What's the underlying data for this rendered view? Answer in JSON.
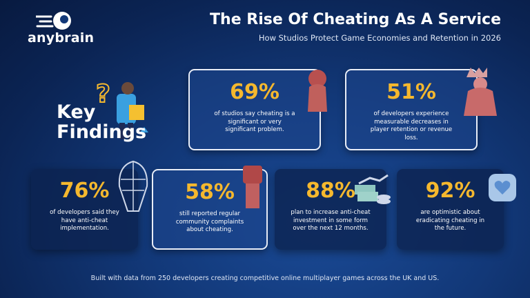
{
  "logo": "anybrain",
  "header": {
    "title": "The Rise Of Cheating As A Service",
    "subtitle": "How Studios Protect Game Economies and Retention in 2026"
  },
  "key_findings": [
    "Key",
    "Findings"
  ],
  "findings": [
    {
      "stat": "69%",
      "text": "of studios say cheating is a significant or very significant problem."
    },
    {
      "stat": "51%",
      "text": "of developers experience measurable decreases in player retention or revenue loss."
    },
    {
      "stat": "76%",
      "text": "of developers said they have anti-cheat implementation."
    },
    {
      "stat": "58%",
      "text": "still reported regular community complaints about cheating."
    },
    {
      "stat": "88%",
      "text": "plan to increase anti-cheat investment in some form over the next 12 months."
    },
    {
      "stat": "92%",
      "text": "are optimistic about eradicating cheating in the future."
    }
  ],
  "footer": "Built with data from 250 developers creating competitive online multiplayer games across the UK and US."
}
